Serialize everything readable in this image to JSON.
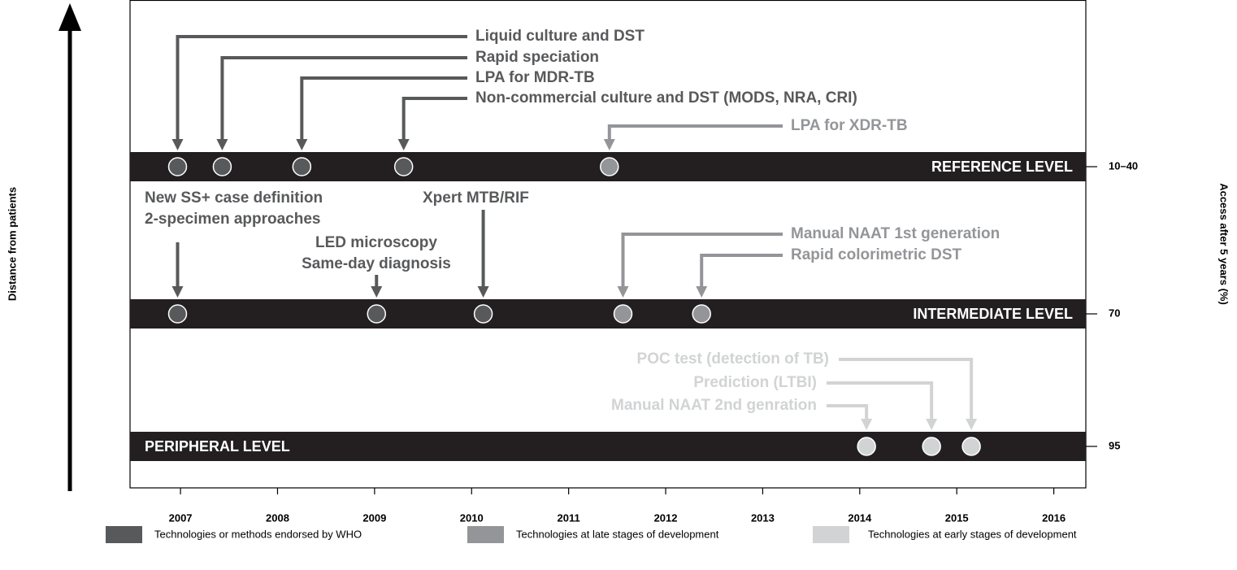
{
  "y_axis_label": "Distance from patients",
  "right_axis_label": "Access after 5 years (%)",
  "xlim": [
    2006.48,
    2016.33
  ],
  "xticks": [
    2007,
    2008,
    2009,
    2010,
    2011,
    2012,
    2013,
    2014,
    2015,
    2016
  ],
  "levels": [
    {
      "name": "REFERENCE LEVEL",
      "access": "10–40"
    },
    {
      "name": "INTERMEDIATE LEVEL",
      "access": 70
    },
    {
      "name": "PERIPHERAL LEVEL",
      "access": 95
    }
  ],
  "stages": [
    {
      "name": "Technologies or methods endorsed by WHO",
      "color": "#58595b"
    },
    {
      "name": "Technologies at late stages of development",
      "color": "#939598"
    },
    {
      "name": "Technologies at early stages of development",
      "color": "#d1d3d4"
    }
  ],
  "events": [
    {
      "year": 2006.97,
      "level": 0,
      "stage": 0,
      "label": [
        "Liquid culture and DST"
      ]
    },
    {
      "year": 2007.43,
      "level": 0,
      "stage": 0,
      "label": [
        "Rapid speciation"
      ]
    },
    {
      "year": 2008.25,
      "level": 0,
      "stage": 0,
      "label": [
        "LPA for MDR-TB"
      ]
    },
    {
      "year": 2009.3,
      "level": 0,
      "stage": 0,
      "label": [
        "Non-commercial culture and DST (MODS, NRA, CRI)"
      ]
    },
    {
      "year": 2011.42,
      "level": 0,
      "stage": 1,
      "label": [
        "LPA for XDR-TB"
      ]
    },
    {
      "year": 2006.97,
      "level": 1,
      "stage": 0,
      "label": [
        "New SS+ case definition",
        "2-specimen approaches"
      ]
    },
    {
      "year": 2009.02,
      "level": 1,
      "stage": 0,
      "label": [
        "LED microscopy",
        "Same-day diagnosis"
      ]
    },
    {
      "year": 2010.12,
      "level": 1,
      "stage": 0,
      "label": [
        "Xpert MTB/RIF"
      ]
    },
    {
      "year": 2011.56,
      "level": 1,
      "stage": 1,
      "label": [
        "Manual NAAT 1st generation"
      ]
    },
    {
      "year": 2012.37,
      "level": 1,
      "stage": 1,
      "label": [
        "Rapid colorimetric DST"
      ]
    },
    {
      "year": 2014.07,
      "level": 2,
      "stage": 2,
      "label": [
        "Manual NAAT 2nd genration"
      ]
    },
    {
      "year": 2014.74,
      "level": 2,
      "stage": 2,
      "label": [
        "Prediction (LTBI)"
      ]
    },
    {
      "year": 2015.15,
      "level": 2,
      "stage": 2,
      "label": [
        "POC test (detection of TB)"
      ]
    }
  ]
}
